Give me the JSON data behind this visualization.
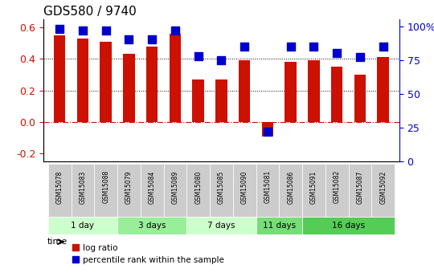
{
  "title": "GDS580 / 9740",
  "samples": [
    "GSM15078",
    "GSM15083",
    "GSM15088",
    "GSM15079",
    "GSM15084",
    "GSM15089",
    "GSM15080",
    "GSM15085",
    "GSM15090",
    "GSM15081",
    "GSM15086",
    "GSM15091",
    "GSM15082",
    "GSM15087",
    "GSM15092"
  ],
  "log_ratio": [
    0.55,
    0.53,
    0.51,
    0.43,
    0.48,
    0.56,
    0.27,
    0.27,
    0.39,
    -0.09,
    0.38,
    0.39,
    0.35,
    0.3,
    0.41
  ],
  "percentile_rank": [
    98,
    97,
    97,
    90,
    90,
    97,
    78,
    75,
    85,
    22,
    85,
    85,
    80,
    77,
    85
  ],
  "bar_color": "#cc1100",
  "dot_color": "#0000cc",
  "ylim_left": [
    -0.25,
    0.65
  ],
  "ylim_right": [
    0,
    105
  ],
  "yticks_left": [
    -0.2,
    0.0,
    0.2,
    0.4,
    0.6
  ],
  "yticks_right": [
    0,
    25,
    50,
    75,
    100
  ],
  "ytick_labels_right": [
    "0",
    "25",
    "50",
    "75",
    "100%"
  ],
  "hlines": [
    0.0,
    0.2,
    0.4
  ],
  "zero_line": 0.0,
  "groups": [
    {
      "label": "1 day",
      "start": 0,
      "end": 3,
      "color": "#ccffcc"
    },
    {
      "label": "3 days",
      "start": 3,
      "end": 6,
      "color": "#99ee99"
    },
    {
      "label": "7 days",
      "start": 6,
      "end": 9,
      "color": "#ccffcc"
    },
    {
      "label": "11 days",
      "start": 9,
      "end": 11,
      "color": "#77dd77"
    },
    {
      "label": "16 days",
      "start": 11,
      "end": 15,
      "color": "#55cc55"
    }
  ],
  "xlabel_color": "#cc1100",
  "ylabel_left_color": "#cc1100",
  "ylabel_right_color": "#0000cc",
  "tick_label_color_left": "#cc1100",
  "tick_label_color_right": "#0000cc",
  "legend_log_ratio": "log ratio",
  "legend_percentile": "percentile rank within the sample",
  "time_label": "time",
  "background_color": "#ffffff",
  "bar_width": 0.5,
  "dot_size": 60,
  "grid_color": "#aaaaaa",
  "spine_color": "#888888"
}
